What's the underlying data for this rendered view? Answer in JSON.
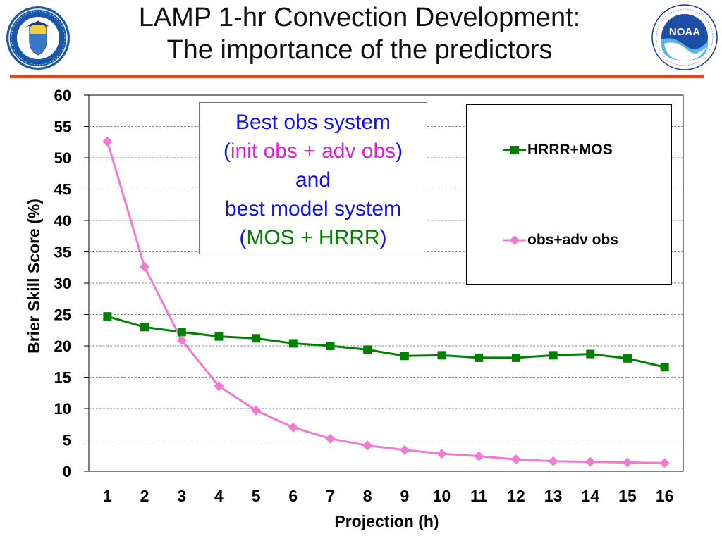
{
  "title": {
    "line1": "LAMP 1-hr Convection Development:",
    "line2": "The importance of the predictors"
  },
  "logos": {
    "left": "department-of-commerce-seal",
    "right": "noaa-logo"
  },
  "colors": {
    "rule": "#e8461a",
    "hrrr_mos": "#008000",
    "obs_adv": "#f07ad2",
    "callout_blue": "#1010e0",
    "callout_magenta": "#e020d8",
    "callout_green": "#008000"
  },
  "callout": {
    "line1": "Best obs system",
    "line2_open": "(",
    "line2_colored": "init obs + adv obs",
    "line2_close": ")",
    "line3": "and",
    "line4": "best model system",
    "line5_open": "(",
    "line5_colored": "MOS + HRRR",
    "line5_close": ")"
  },
  "chart_data": {
    "type": "line",
    "xlabel": "Projection  (h)",
    "ylabel": "Brier Skill Score  (%)",
    "ylim": [
      0,
      60
    ],
    "yticks": [
      0,
      5,
      10,
      15,
      20,
      25,
      30,
      35,
      40,
      45,
      50,
      55,
      60
    ],
    "categories": [
      "1",
      "2",
      "3",
      "4",
      "5",
      "6",
      "7",
      "8",
      "9",
      "10",
      "11",
      "12",
      "13",
      "14",
      "15",
      "16"
    ],
    "grid": "horizontal dashed",
    "legend": "top-right",
    "series": [
      {
        "name": "HRRR+MOS",
        "marker": "square",
        "color": "#008000",
        "values": [
          24.7,
          23.0,
          22.2,
          21.5,
          21.2,
          20.4,
          20.0,
          19.4,
          18.4,
          18.5,
          18.1,
          18.1,
          18.5,
          18.7,
          18.0,
          16.6
        ]
      },
      {
        "name": "obs+adv obs",
        "marker": "diamond",
        "color": "#f07ad2",
        "values": [
          52.6,
          32.6,
          20.9,
          13.6,
          9.7,
          7.0,
          5.2,
          4.1,
          3.4,
          2.8,
          2.4,
          1.9,
          1.6,
          1.5,
          1.4,
          1.3
        ]
      }
    ]
  }
}
